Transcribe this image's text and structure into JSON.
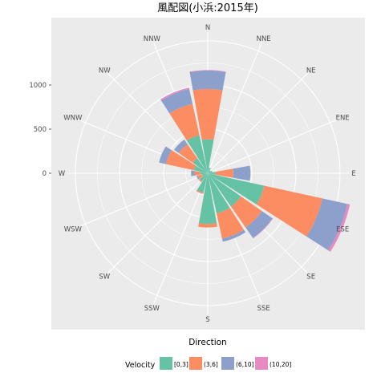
{
  "chart_data": {
    "type": "bar",
    "subtype": "wind-rose",
    "title": "風配図(小浜:2015年)",
    "xlabel": "Direction",
    "ylabel": "",
    "directions": [
      "N",
      "NNE",
      "NE",
      "ENE",
      "E",
      "ESE",
      "SE",
      "SSE",
      "S",
      "SSW",
      "SW",
      "WSW",
      "W",
      "WNW",
      "NW",
      "NNW"
    ],
    "radial_ticks": [
      0,
      500,
      1000
    ],
    "ylim": [
      0,
      1600
    ],
    "stacked": true,
    "legend_title": "Velocity",
    "legend_position": "bottom",
    "series": [
      {
        "name": "[0,3]",
        "color": "#66C2A5",
        "values": [
          385,
          65,
          40,
          55,
          90,
          655,
          460,
          465,
          575,
          225,
          110,
          60,
          85,
          160,
          205,
          440
        ]
      },
      {
        "name": "(3,6]",
        "color": "#FC8D62",
        "values": [
          570,
          0,
          0,
          0,
          200,
          675,
          290,
          295,
          40,
          15,
          15,
          55,
          65,
          325,
          195,
          365
        ]
      },
      {
        "name": "(6,10]",
        "color": "#8DA0CB",
        "values": [
          210,
          0,
          0,
          0,
          195,
          290,
          145,
          35,
          0,
          0,
          0,
          15,
          40,
          80,
          65,
          175
        ]
      },
      {
        "name": "(10,20]",
        "color": "#E78AC3",
        "values": [
          5,
          0,
          0,
          0,
          0,
          30,
          5,
          0,
          0,
          0,
          0,
          0,
          0,
          0,
          0,
          15
        ]
      }
    ],
    "grid": true,
    "panel_background": "#EBEBEB"
  }
}
